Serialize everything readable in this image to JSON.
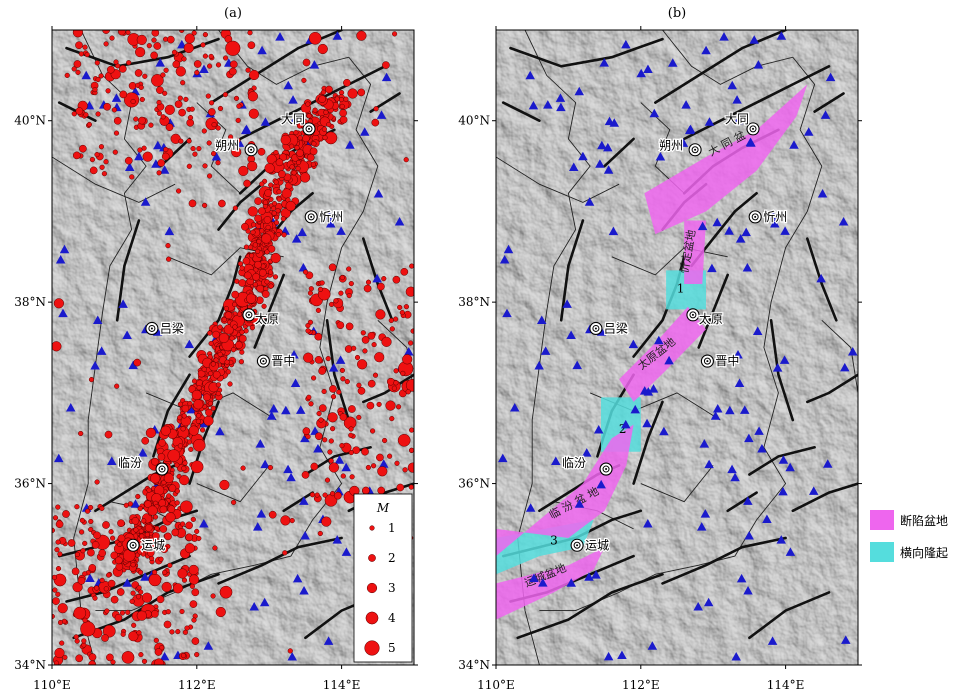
{
  "panels": {
    "a": {
      "title": "(a)"
    },
    "b": {
      "title": "(b)"
    }
  },
  "map": {
    "lon_range": [
      110,
      115
    ],
    "lat_range": [
      34,
      41
    ],
    "lon_ticks": [
      {
        "value": 110,
        "label": "110°E"
      },
      {
        "value": 112,
        "label": "112°E"
      },
      {
        "value": 114,
        "label": "114°E"
      }
    ],
    "lat_ticks": [
      {
        "value": 34,
        "label": "34°N"
      },
      {
        "value": 36,
        "label": "36°N"
      },
      {
        "value": 38,
        "label": "38°N"
      },
      {
        "value": 40,
        "label": "40°N"
      }
    ]
  },
  "cities": [
    {
      "name": "大同",
      "lon": 113.55,
      "lat": 39.91
    },
    {
      "name": "朔州",
      "lon": 112.75,
      "lat": 39.68
    },
    {
      "name": "忻州",
      "lon": 113.58,
      "lat": 38.94
    },
    {
      "name": "太原",
      "lon": 112.72,
      "lat": 37.86
    },
    {
      "name": "吕梁",
      "lon": 111.38,
      "lat": 37.71
    },
    {
      "name": "晋中",
      "lon": 112.92,
      "lat": 37.35
    },
    {
      "name": "临汾",
      "lon": 111.52,
      "lat": 36.16
    },
    {
      "name": "运城",
      "lon": 111.12,
      "lat": 35.32
    }
  ],
  "legend_a": {
    "title": "M",
    "entries": [
      {
        "label": "1",
        "magnitude": 1
      },
      {
        "label": "2",
        "magnitude": 2
      },
      {
        "label": "3",
        "magnitude": 3
      },
      {
        "label": "4",
        "magnitude": 4
      },
      {
        "label": "5",
        "magnitude": 5
      }
    ]
  },
  "legend_b": {
    "entries": [
      {
        "label": "断陷盆地",
        "color": "#ee66ee"
      },
      {
        "label": "横向隆起",
        "color": "#55dddd"
      }
    ]
  },
  "basins": [
    {
      "label": "大 同 盆 地",
      "color": "#ee66ee"
    },
    {
      "label": "忻定盆地",
      "color": "#ee66ee"
    },
    {
      "label": "太原盆地",
      "color": "#ee66ee"
    },
    {
      "label": "临 汾 盆 地",
      "color": "#ee66ee"
    },
    {
      "label": "运城盆地",
      "color": "#ee66ee"
    }
  ],
  "uplifts": [
    {
      "label": "1",
      "color": "#55dddd"
    },
    {
      "label": "2",
      "color": "#55dddd"
    },
    {
      "label": "3",
      "color": "#55dddd"
    }
  ],
  "colors": {
    "earthquake": "#ee1111",
    "station": "#1a1acc",
    "fault": "#111111",
    "relief": "#b4b4b4"
  }
}
